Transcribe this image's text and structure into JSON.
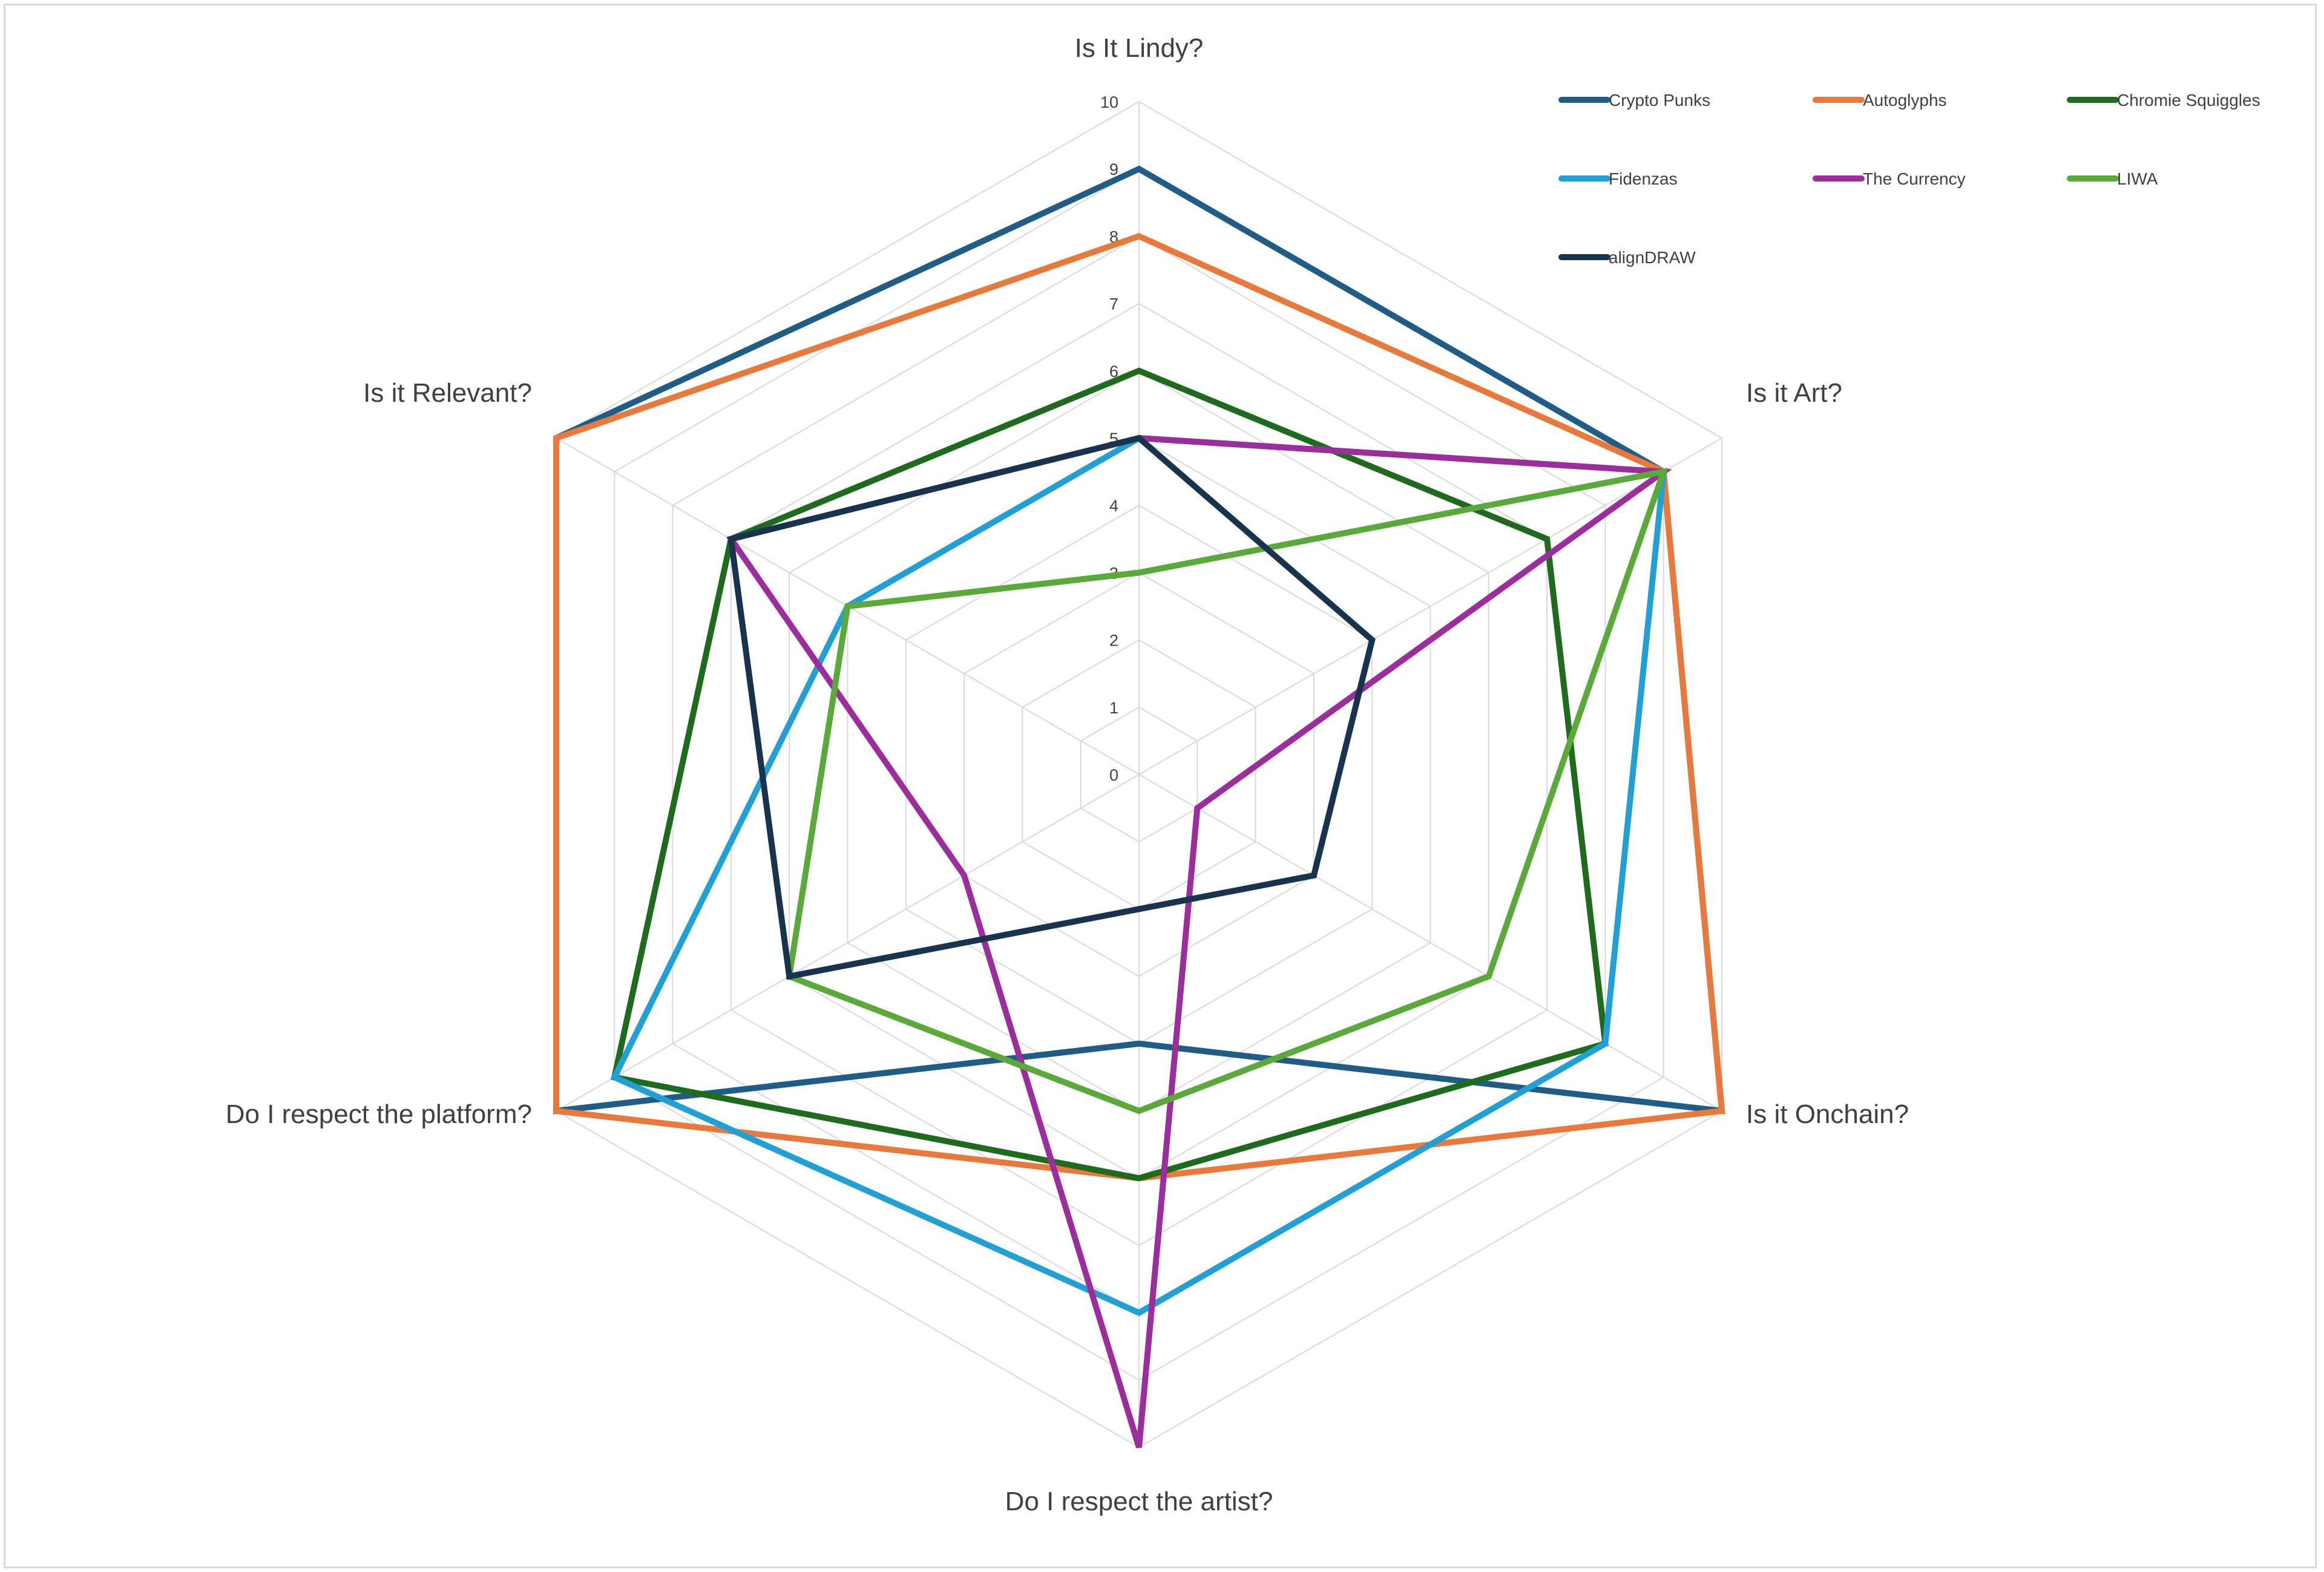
{
  "chart_data": {
    "type": "radar",
    "title": "",
    "axes": [
      "Is It Lindy?",
      "Is it Art?",
      "Is it Onchain?",
      "Do I respect the artist?",
      "Do I respect the platform?",
      "Is it Relevant?"
    ],
    "rlim": [
      0,
      10
    ],
    "ticks": [
      "0",
      "1",
      "2",
      "3",
      "4",
      "5",
      "6",
      "7",
      "8",
      "9",
      "10"
    ],
    "grid": true,
    "legend_position": "top-right",
    "series": [
      {
        "name": "Crypto Punks",
        "color": "#1f5d87",
        "values": [
          9,
          9,
          10,
          4,
          10,
          10
        ]
      },
      {
        "name": "Autoglyphs",
        "color": "#e8793c",
        "values": [
          8,
          9,
          10,
          6,
          10,
          10
        ]
      },
      {
        "name": "Chromie Squiggles",
        "color": "#1e6b1e",
        "values": [
          6,
          7,
          8,
          6,
          9,
          7
        ]
      },
      {
        "name": "Fidenzas",
        "color": "#22a0d6",
        "values": [
          5,
          9,
          8,
          8,
          9,
          5
        ]
      },
      {
        "name": "The Currency",
        "color": "#9c2d9c",
        "values": [
          5,
          9,
          1,
          10,
          3,
          7
        ]
      },
      {
        "name": "LIWA",
        "color": "#5aa93a",
        "values": [
          3,
          9,
          6,
          5,
          6,
          5
        ]
      },
      {
        "name": "alignDRAW",
        "color": "#17334d",
        "values": [
          5,
          4,
          3,
          2,
          6,
          7
        ]
      }
    ]
  }
}
